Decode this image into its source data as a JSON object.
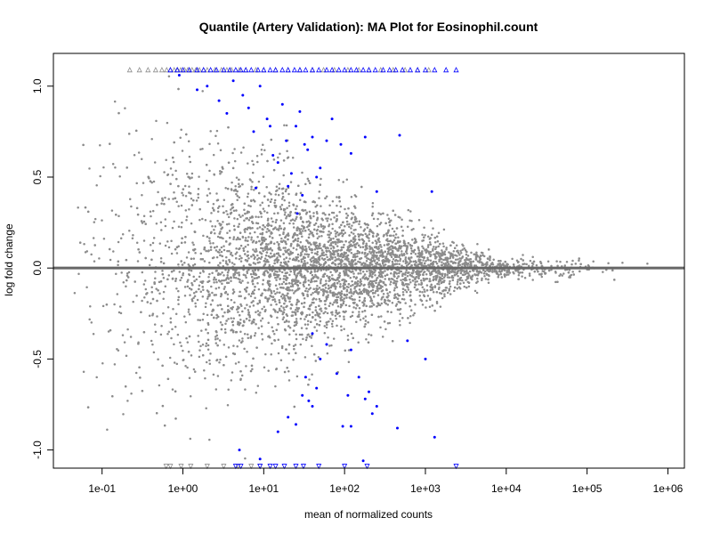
{
  "chart_data": {
    "type": "scatter",
    "title": "Quantile (Artery Validation): MA Plot for Eosinophil.count",
    "xlabel": "mean of normalized counts",
    "ylabel": "log fold change",
    "x_scale": "log10",
    "xlim": [
      0.025,
      1600000
    ],
    "ylim": [
      -1.1,
      1.18
    ],
    "x_ticks": [
      {
        "value": 0.1,
        "label": "1e-01"
      },
      {
        "value": 1,
        "label": "1e+00"
      },
      {
        "value": 10,
        "label": "1e+01"
      },
      {
        "value": 100,
        "label": "1e+02"
      },
      {
        "value": 1000,
        "label": "1e+03"
      },
      {
        "value": 10000,
        "label": "1e+04"
      },
      {
        "value": 100000,
        "label": "1e+05"
      },
      {
        "value": 1000000,
        "label": "1e+06"
      }
    ],
    "y_ticks": [
      {
        "value": -1.0,
        "label": "-1.0"
      },
      {
        "value": -0.5,
        "label": "-0.5"
      },
      {
        "value": 0.0,
        "label": "0.0"
      },
      {
        "value": 0.5,
        "label": "0.5"
      },
      {
        "value": 1.0,
        "label": "1.0"
      }
    ],
    "reference_line": {
      "y": 0,
      "color": "#666666"
    },
    "grid": false,
    "legend": "none",
    "colors": {
      "not_significant": "#8c8c8c",
      "significant": "#0000ff"
    },
    "series": [
      {
        "color": "#0000ff",
        "marker": "dot",
        "points": [
          [
            0.9,
            1.06
          ],
          [
            1.5,
            0.98
          ],
          [
            2.0,
            1.0
          ],
          [
            2.8,
            0.92
          ],
          [
            3.5,
            0.85
          ],
          [
            4.2,
            1.03
          ],
          [
            5.5,
            0.95
          ],
          [
            6.5,
            0.88
          ],
          [
            7.5,
            0.75
          ],
          [
            9.0,
            1.0
          ],
          [
            11,
            0.82
          ],
          [
            13,
            0.62
          ],
          [
            15,
            0.58
          ],
          [
            17,
            0.9
          ],
          [
            19,
            0.7
          ],
          [
            20,
            0.45
          ],
          [
            22,
            0.52
          ],
          [
            25,
            0.78
          ],
          [
            28,
            0.86
          ],
          [
            30,
            0.4
          ],
          [
            35,
            0.65
          ],
          [
            40,
            0.72
          ],
          [
            45,
            0.5
          ],
          [
            50,
            0.55
          ],
          [
            60,
            0.7
          ],
          [
            70,
            0.82
          ],
          [
            90,
            0.68
          ],
          [
            120,
            0.63
          ],
          [
            180,
            0.72
          ],
          [
            250,
            0.42
          ],
          [
            480,
            0.73
          ],
          [
            1200,
            0.42
          ],
          [
            8,
            0.44
          ],
          [
            12,
            0.78
          ],
          [
            26,
            0.3
          ],
          [
            32,
            0.68
          ],
          [
            5,
            -1.0
          ],
          [
            9,
            -1.05
          ],
          [
            15,
            -0.9
          ],
          [
            20,
            -0.82
          ],
          [
            25,
            -0.86
          ],
          [
            30,
            -0.7
          ],
          [
            33,
            -0.6
          ],
          [
            36,
            -0.73
          ],
          [
            40,
            -0.76
          ],
          [
            45,
            -0.66
          ],
          [
            50,
            -0.5
          ],
          [
            60,
            -0.42
          ],
          [
            80,
            -0.58
          ],
          [
            95,
            -0.87
          ],
          [
            110,
            -0.7
          ],
          [
            120,
            -0.87
          ],
          [
            150,
            -0.6
          ],
          [
            170,
            -1.06
          ],
          [
            180,
            -0.72
          ],
          [
            200,
            -0.68
          ],
          [
            220,
            -0.8
          ],
          [
            250,
            -0.76
          ],
          [
            450,
            -0.88
          ],
          [
            600,
            -0.4
          ],
          [
            1000,
            -0.5
          ],
          [
            1300,
            -0.93
          ],
          [
            120,
            -0.45
          ],
          [
            40,
            -0.36
          ]
        ]
      }
    ],
    "clipped": {
      "top_y": 1.09,
      "bottom_y": -1.09,
      "gray_top_x": [
        0.22,
        0.29,
        0.37,
        0.46,
        0.55,
        0.63,
        0.7,
        0.78,
        0.86,
        0.94,
        1.05,
        1.15,
        1.3,
        1.45,
        1.6,
        1.8,
        2.0,
        2.5,
        3.0,
        3.5,
        4.0,
        5.0,
        6.0,
        8.0,
        10,
        14,
        20,
        28,
        40,
        55,
        75,
        110,
        150,
        200,
        280,
        400,
        560,
        800,
        1100
      ],
      "blue_top_x": [
        0.7,
        0.85,
        1.0,
        1.2,
        1.5,
        1.8,
        2.2,
        2.6,
        3.2,
        3.8,
        4.5,
        5.2,
        6.0,
        7.0,
        8.5,
        10,
        12,
        14,
        17,
        20,
        24,
        28,
        33,
        40,
        48,
        60,
        70,
        85,
        100,
        120,
        140,
        170,
        200,
        240,
        300,
        360,
        430,
        520,
        650,
        800,
        1000,
        1300,
        1800,
        2400
      ],
      "gray_bottom_x": [
        0.62,
        0.7,
        0.95,
        1.25,
        2.0,
        3.2,
        4.8,
        7.0,
        9.0
      ],
      "blue_bottom_x": [
        4.5,
        5.2,
        9.0,
        12,
        14,
        18,
        25,
        31,
        48,
        100,
        190,
        2400
      ]
    }
  }
}
